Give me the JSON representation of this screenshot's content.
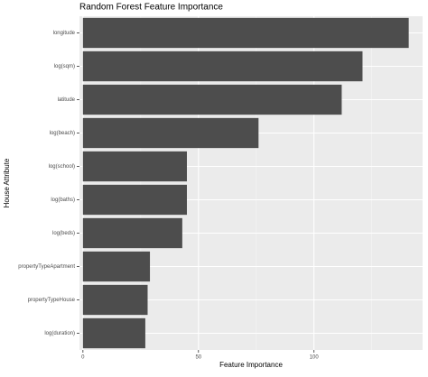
{
  "chart_data": {
    "type": "barh",
    "title": "Random Forest Feature Importance",
    "x_label": "Feature Importance",
    "y_label": "House Attribute",
    "categories": [
      "longitude",
      "log(sqm)",
      "latitude",
      "log(beach)",
      "log(school)",
      "log(baths)",
      "log(beds)",
      "propertyTypeApartment",
      "propertyTypeHouse",
      "log(duration)"
    ],
    "values": [
      141,
      121,
      112,
      76,
      45,
      45,
      43,
      29,
      28,
      27
    ],
    "color": "#4d4d4d",
    "xlim": [
      -1.5,
      147
    ],
    "xticks": [
      0,
      50,
      100
    ],
    "minor_xticks": [
      25,
      75,
      125
    ],
    "grid": true
  }
}
